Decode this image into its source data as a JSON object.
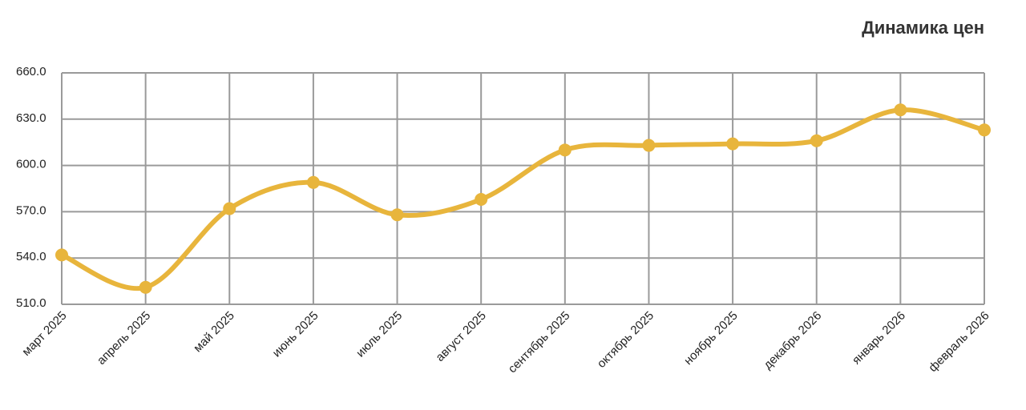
{
  "chart_data": {
    "type": "line",
    "title": "Динамика цен",
    "categories": [
      "март 2025",
      "апрель 2025",
      "май 2025",
      "июнь 2025",
      "июль 2025",
      "август 2025",
      "сентябрь 2025",
      "октябрь 2025",
      "ноябрь 2025",
      "декабрь 2026",
      "январь 2026",
      "февраль 2026"
    ],
    "values": [
      542,
      521,
      572,
      589,
      568,
      578,
      610,
      613,
      614,
      616,
      636,
      623
    ],
    "color": "#e8b53c",
    "ylim": [
      510,
      660
    ],
    "yticks": [
      {
        "value": 510,
        "label": "510.0"
      },
      {
        "value": 540,
        "label": "540.0"
      },
      {
        "value": 570,
        "label": "570.0"
      },
      {
        "value": 600,
        "label": "600.0"
      },
      {
        "value": 630,
        "label": "630.0"
      },
      {
        "value": 660,
        "label": "660.0"
      }
    ],
    "grid": true
  }
}
